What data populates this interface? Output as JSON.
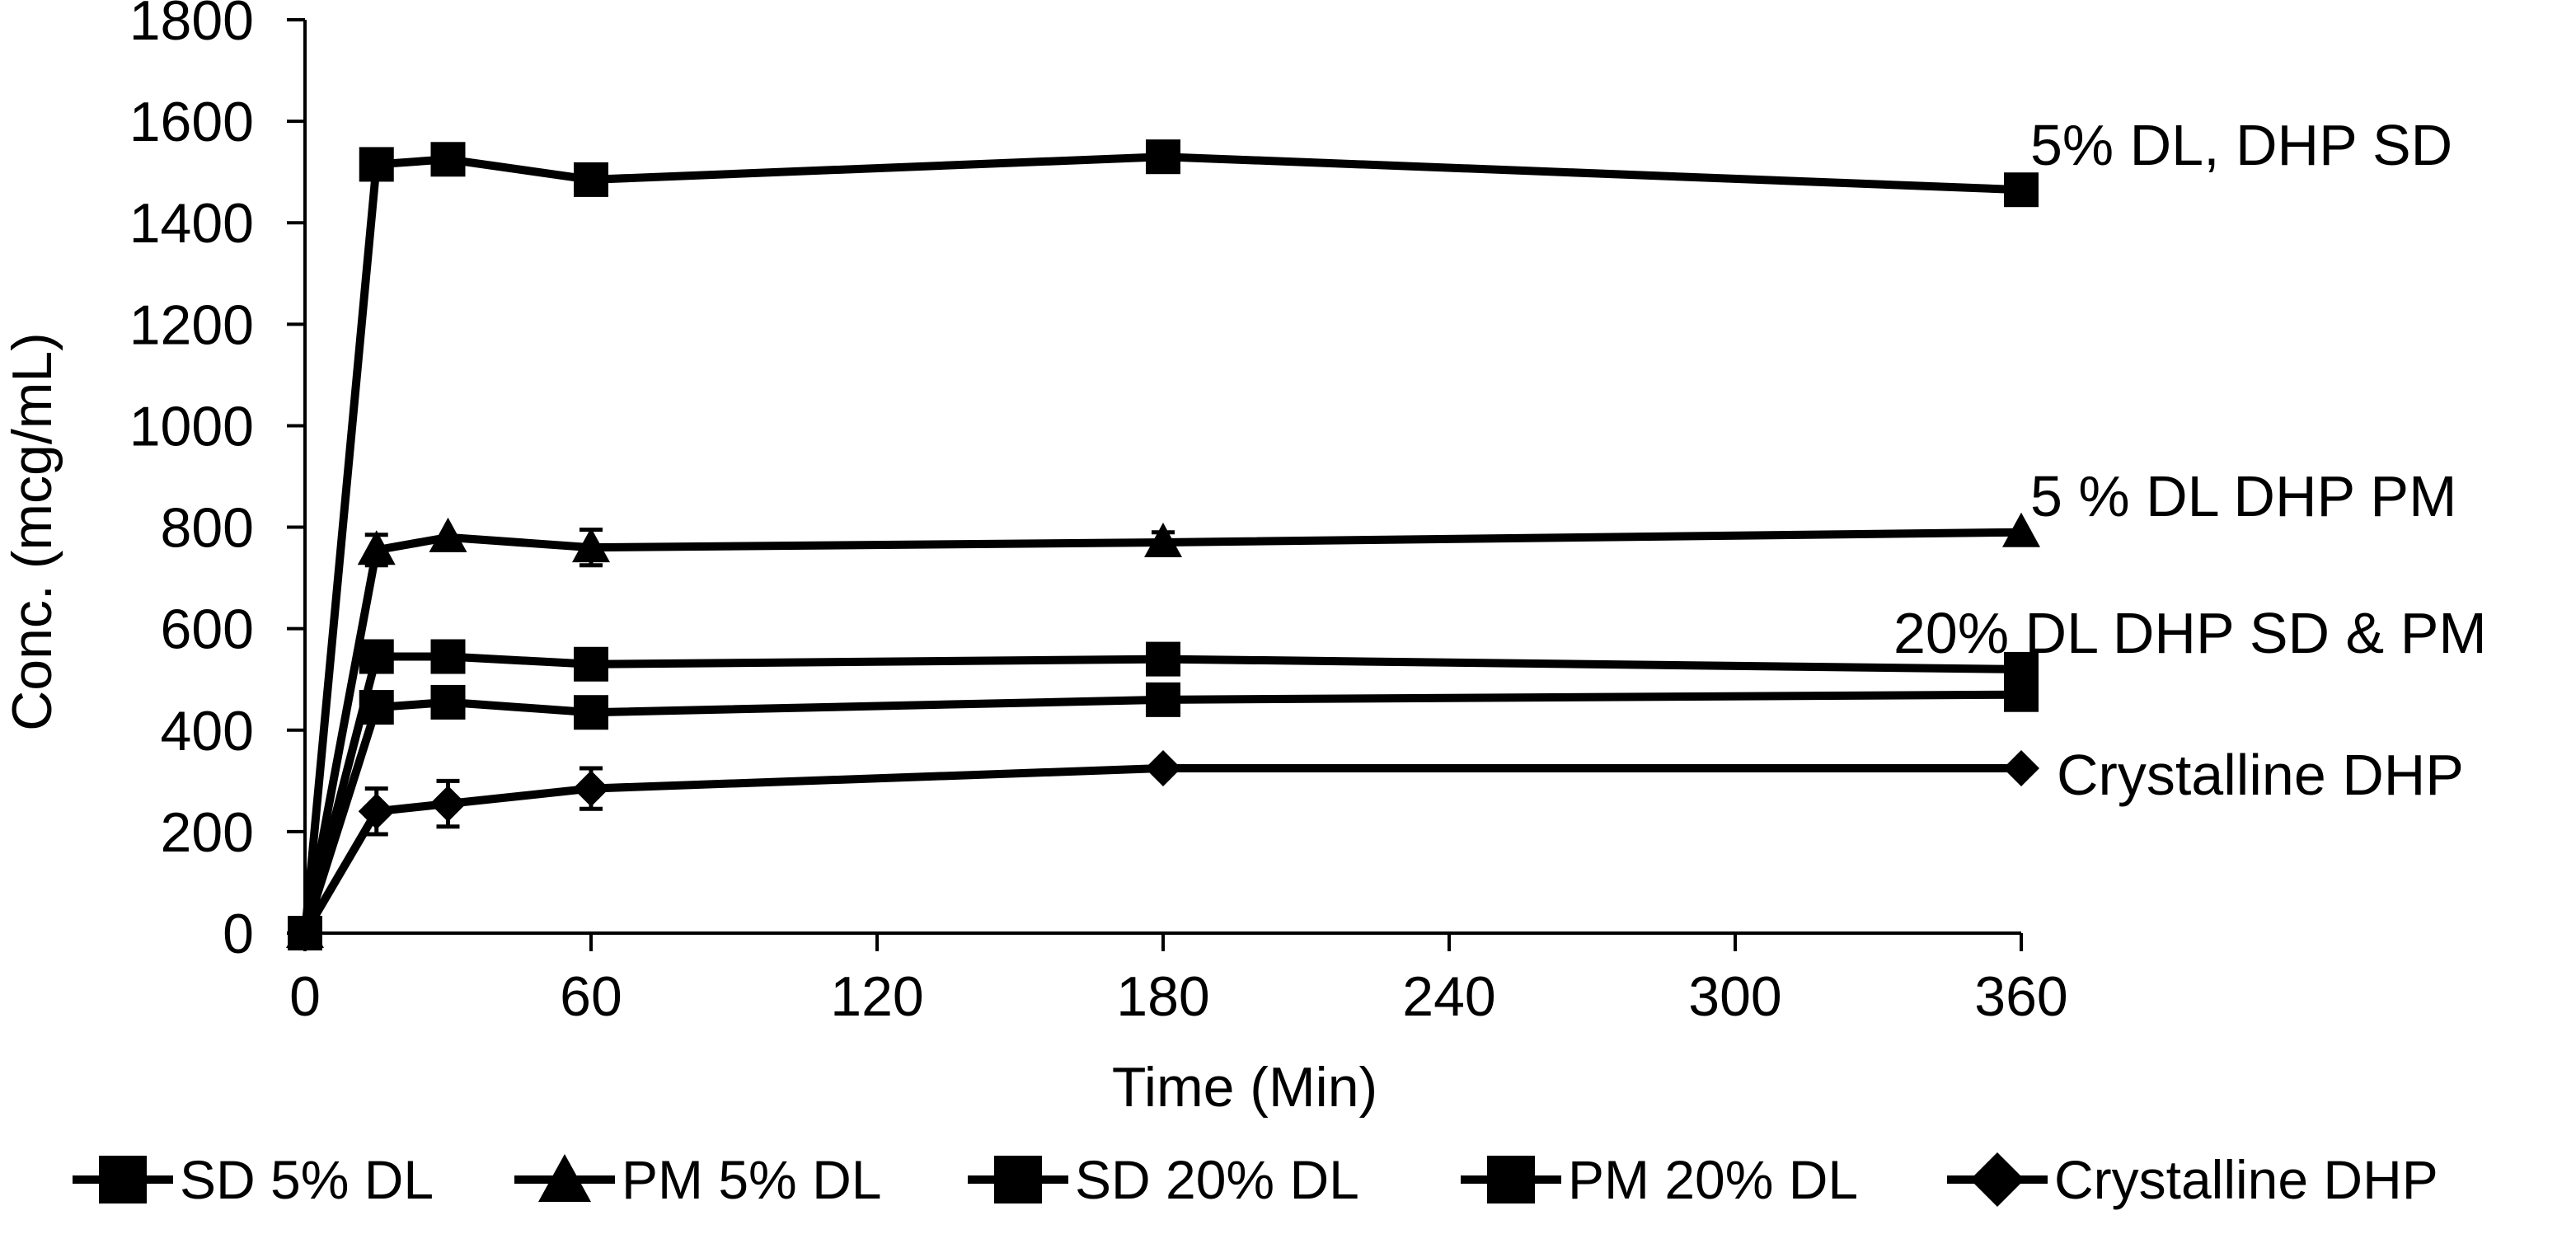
{
  "chart_data": {
    "type": "line",
    "title": "",
    "xlabel": "Time (Min)",
    "ylabel": "Conc. (mcg/mL)",
    "xlim": [
      0,
      360
    ],
    "ylim": [
      0,
      1800
    ],
    "xticks": [
      0,
      60,
      120,
      180,
      240,
      300,
      360
    ],
    "yticks": [
      0,
      200,
      400,
      600,
      800,
      1000,
      1200,
      1400,
      1600,
      1800
    ],
    "grid": false,
    "legend_position": "bottom",
    "x": [
      0,
      15,
      30,
      60,
      180,
      360
    ],
    "series": [
      {
        "name": "SD 5% DL",
        "marker": "square",
        "values": [
          0,
          1515,
          1525,
          1485,
          1530,
          1465
        ],
        "errors": [
          0,
          0,
          0,
          0,
          0,
          0
        ]
      },
      {
        "name": "PM 5% DL",
        "marker": "triangle",
        "values": [
          0,
          755,
          780,
          760,
          770,
          790
        ],
        "errors": [
          0,
          30,
          0,
          35,
          20,
          0
        ]
      },
      {
        "name": "SD 20% DL",
        "marker": "square",
        "values": [
          0,
          545,
          545,
          530,
          540,
          520
        ],
        "errors": [
          0,
          0,
          0,
          0,
          0,
          0
        ]
      },
      {
        "name": "PM 20% DL",
        "marker": "square",
        "values": [
          0,
          445,
          455,
          435,
          460,
          470
        ],
        "errors": [
          0,
          0,
          0,
          0,
          0,
          0
        ]
      },
      {
        "name": "Crystalline DHP",
        "marker": "diamond",
        "values": [
          0,
          240,
          255,
          285,
          325,
          325
        ],
        "errors": [
          0,
          45,
          45,
          40,
          0,
          0
        ]
      }
    ],
    "annotations": [
      {
        "text": "5% DL, DHP SD",
        "series": 0
      },
      {
        "text": "5 % DL DHP PM",
        "series": 1
      },
      {
        "text": "20% DL DHP SD & PM",
        "series": 2
      },
      {
        "text": "Crystalline DHP",
        "series": 4
      }
    ]
  }
}
